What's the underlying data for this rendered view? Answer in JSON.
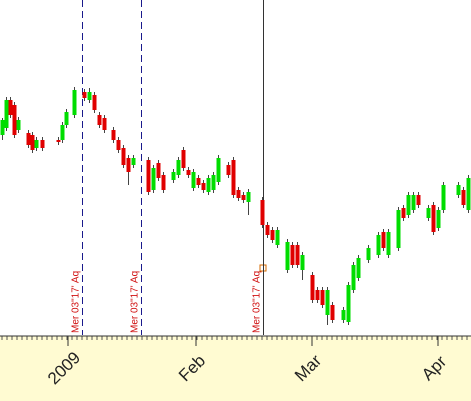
{
  "chart_data": {
    "type": "candlestick",
    "x": [
      2,
      6,
      10,
      14,
      18,
      28,
      32,
      36,
      42,
      58,
      62,
      66,
      74,
      84,
      89,
      94,
      99,
      104,
      113,
      118,
      123,
      128,
      133,
      148,
      153,
      158,
      163,
      173,
      178,
      183,
      188,
      193,
      198,
      203,
      208,
      213,
      218,
      228,
      233,
      238,
      243,
      248,
      262,
      267,
      272,
      277,
      287,
      292,
      297,
      302,
      312,
      317,
      322,
      327,
      332,
      343,
      348,
      353,
      358,
      368,
      378,
      383,
      388,
      398,
      403,
      408,
      413,
      418,
      428,
      433,
      438,
      443,
      458,
      463,
      468
    ],
    "open": [
      205,
      212,
      240,
      235,
      210,
      207,
      205,
      192,
      200,
      200,
      200,
      215,
      225,
      248,
      240,
      245,
      225,
      222,
      210,
      200,
      192,
      182,
      175,
      180,
      150,
      177,
      165,
      160,
      165,
      190,
      170,
      152,
      162,
      157,
      148,
      150,
      158,
      175,
      180,
      150,
      145,
      138,
      140,
      115,
      110,
      95,
      70,
      95,
      95,
      70,
      65,
      50,
      50,
      25,
      35,
      20,
      18,
      50,
      62,
      80,
      85,
      108,
      85,
      92,
      132,
      125,
      130,
      145,
      122,
      135,
      112,
      130,
      145,
      150,
      130
    ],
    "high": [
      222,
      243,
      243,
      238,
      223,
      210,
      208,
      203,
      203,
      203,
      218,
      231,
      253,
      251,
      252,
      248,
      228,
      225,
      213,
      203,
      195,
      185,
      185,
      183,
      175,
      180,
      168,
      171,
      183,
      193,
      173,
      171,
      165,
      160,
      165,
      168,
      185,
      178,
      183,
      153,
      148,
      151,
      143,
      118,
      113,
      113,
      101,
      98,
      98,
      88,
      68,
      53,
      53,
      53,
      38,
      33,
      58,
      78,
      85,
      95,
      108,
      111,
      111,
      133,
      135,
      148,
      148,
      148,
      135,
      138,
      133,
      158,
      158,
      153,
      165
    ],
    "low": [
      200,
      209,
      222,
      202,
      207,
      192,
      187,
      189,
      189,
      195,
      197,
      212,
      222,
      239,
      237,
      227,
      212,
      207,
      197,
      187,
      172,
      155,
      172,
      145,
      147,
      159,
      147,
      157,
      162,
      169,
      162,
      149,
      152,
      147,
      145,
      147,
      155,
      162,
      142,
      139,
      137,
      125,
      112,
      102,
      97,
      92,
      67,
      72,
      72,
      60,
      37,
      37,
      32,
      15,
      17,
      17,
      15,
      47,
      59,
      77,
      82,
      89,
      82,
      89,
      119,
      122,
      127,
      132,
      119,
      105,
      109,
      127,
      142,
      132,
      127
    ],
    "close": [
      220,
      240,
      225,
      205,
      220,
      195,
      190,
      200,
      192,
      198,
      215,
      228,
      250,
      242,
      248,
      230,
      215,
      210,
      200,
      190,
      175,
      168,
      182,
      148,
      172,
      162,
      150,
      168,
      180,
      172,
      165,
      168,
      155,
      150,
      162,
      165,
      182,
      165,
      145,
      142,
      140,
      148,
      115,
      105,
      100,
      110,
      98,
      75,
      75,
      85,
      40,
      40,
      35,
      50,
      20,
      30,
      55,
      75,
      82,
      92,
      105,
      92,
      108,
      130,
      122,
      145,
      145,
      135,
      132,
      108,
      130,
      155,
      155,
      135,
      162
    ],
    "up_color": "#00dd00",
    "down_color": "#e00000",
    "xlim": [
      0,
      471
    ],
    "ylim": [
      5,
      340
    ],
    "xticks": [
      {
        "value": 68,
        "label": "2009"
      },
      {
        "value": 196,
        "label": "Feb"
      },
      {
        "value": 312,
        "label": "Mar"
      },
      {
        "value": 438,
        "label": "Apr"
      }
    ],
    "markers": [
      {
        "x": 82,
        "style": "dashed",
        "color": "#1a1a8c",
        "label": "Mer 03\"17' Aq"
      },
      {
        "x": 141,
        "style": "dashed",
        "color": "#1a1a8c",
        "label": "Mer 03\"17' Aq"
      },
      {
        "x": 263,
        "style": "solid",
        "color": "#333333",
        "label": "Mer 03\"17' Aq"
      }
    ]
  }
}
